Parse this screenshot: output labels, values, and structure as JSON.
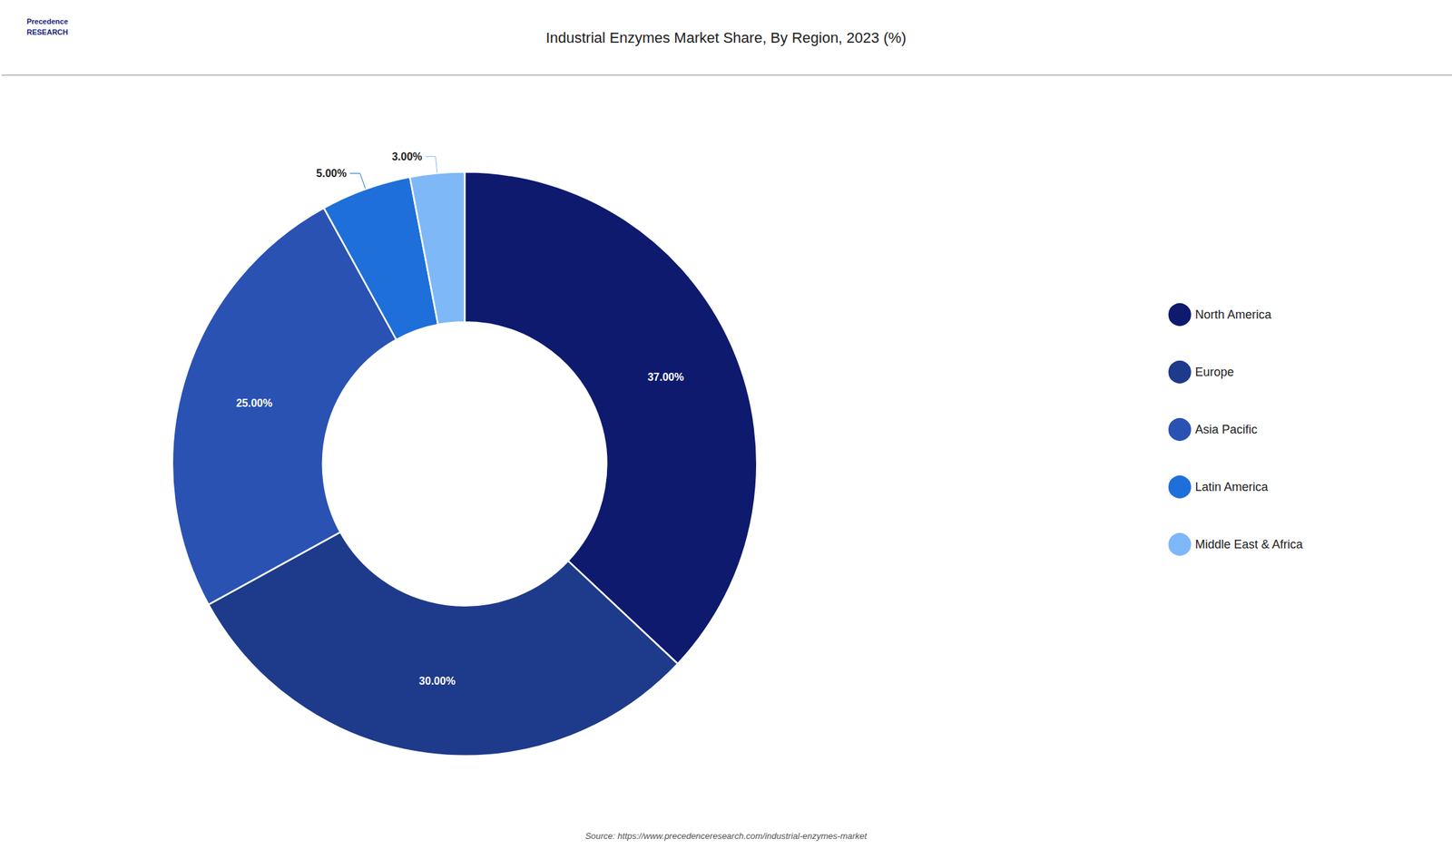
{
  "chart_data": {
    "type": "pie",
    "title": "Industrial Enzymes Market Share, By Region, 2023 (%)",
    "categories": [
      "North America",
      "Europe",
      "Asia Pacific",
      "Latin America",
      "Middle East & Africa"
    ],
    "values": [
      37.0,
      30.0,
      25.0,
      5.0,
      3.0
    ],
    "value_labels": [
      "37.00%",
      "30.00%",
      "25.00%",
      "5.00%",
      "3.00%"
    ],
    "colors": [
      "#0d1a6e",
      "#1e3a8a",
      "#2952b3",
      "#1e6fd9",
      "#7eb8f7"
    ],
    "data_labels": true,
    "legend": "right",
    "source": "Source: https://www.precedenceresearch.com/industrial-enzymes-market",
    "annotations": [
      "Precedence\nRESEARCH"
    ]
  }
}
